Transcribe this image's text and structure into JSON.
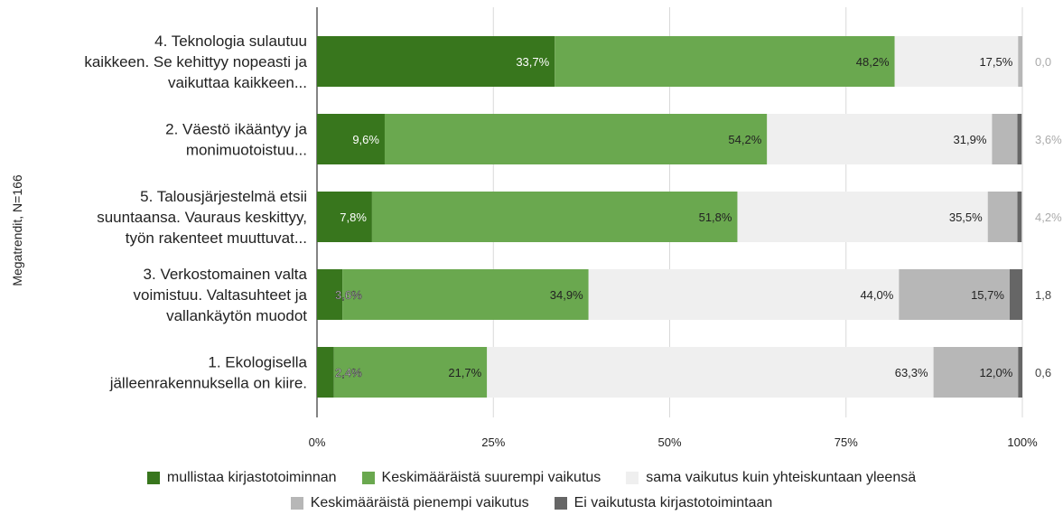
{
  "chart_data": {
    "type": "bar",
    "orientation": "horizontal",
    "stacked": true,
    "ylabel": "Megatrendit, N=166",
    "categories": [
      [
        "4. Teknologia sulautuu",
        "kaikkeen. Se kehittyy nopeasti ja",
        "vaikuttaa kaikkeen..."
      ],
      [
        "2. Väestö ikääntyy ja",
        "monimuotoistuu..."
      ],
      [
        "5. Talousjärjestelmä etsii",
        "suuntaansa. Vauraus keskittyy,",
        "työn rakenteet muuttuvat..."
      ],
      [
        "3. Verkostomainen valta",
        "voimistuu. Valtasuhteet ja",
        "vallankäytön muodot"
      ],
      [
        "1. Ekologisella",
        "jälleenrakennuksella on kiire."
      ]
    ],
    "xticks": [
      "0%",
      "25%",
      "50%",
      "75%",
      "100%"
    ],
    "xlim": [
      0,
      100
    ],
    "grid": true,
    "legend_position": "bottom",
    "series": [
      {
        "name": "mullistaa kirjastotoiminnan",
        "color": "#38761d",
        "values": [
          33.7,
          9.6,
          7.8,
          3.6,
          2.4
        ],
        "labels": [
          "33,7%",
          "9,6%",
          "7,8%",
          "3,6%",
          "2,4%"
        ]
      },
      {
        "name": "Keskimääräistä suurempi vaikutus",
        "color": "#6aa84f",
        "values": [
          48.2,
          54.2,
          51.8,
          34.9,
          21.7
        ],
        "labels": [
          "48,2%",
          "54,2%",
          "51,8%",
          "34,9%",
          "21,7%"
        ]
      },
      {
        "name": "sama vaikutus kuin yhteiskuntaan yleensä",
        "color": "#efefef",
        "values": [
          17.5,
          31.9,
          35.5,
          44.0,
          63.3
        ],
        "labels": [
          "17,5%",
          "31,9%",
          "35,5%",
          "44,0%",
          "63,3%"
        ]
      },
      {
        "name": "Keskimääräistä pienempi vaikutus",
        "color": "#b7b7b7",
        "values": [
          0.6,
          3.6,
          4.2,
          15.7,
          12.0
        ],
        "labels": [
          "",
          "",
          "",
          "15,7%",
          "12,0%"
        ]
      },
      {
        "name": "Ei vaikutusta kirjastotoimintaan",
        "color": "#666666",
        "values": [
          0.0,
          0.6,
          0.6,
          1.8,
          0.6
        ],
        "labels": [
          "",
          "",
          "",
          "",
          ""
        ]
      }
    ],
    "outside_labels": [
      "0,0",
      "3,6%",
      "4,2%",
      "1,8",
      "0,6"
    ]
  }
}
